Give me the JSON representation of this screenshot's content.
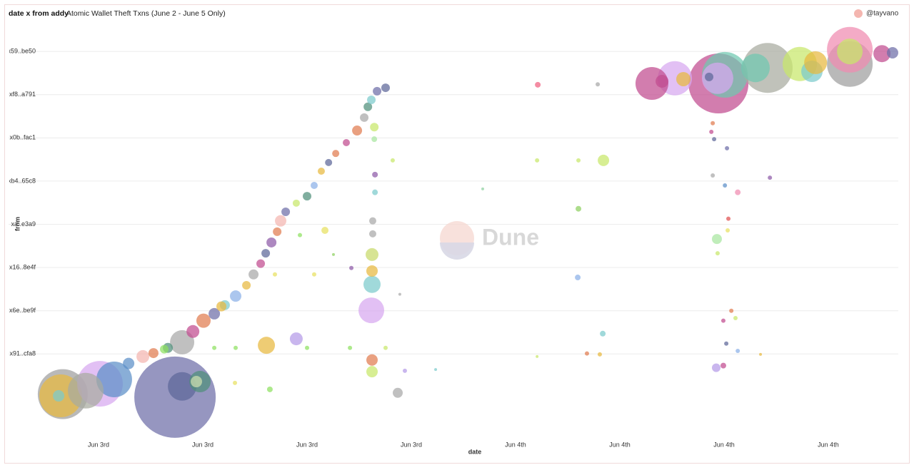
{
  "chart_data": {
    "type": "bubble",
    "title": "date x from addy",
    "subtitle": "Atomic Wallet Theft Txns (June 2 - June 5 Only)",
    "x_label": "date",
    "y_label": "from",
    "watermark": "Dune",
    "legend_position": "top-right",
    "grid": true,
    "xlim": [
      -5.18,
      46.03
    ],
    "xticks": [
      {
        "value": 0,
        "label": "Jun 3rd"
      },
      {
        "value": 6,
        "label": "Jun 3rd"
      },
      {
        "value": 12,
        "label": "Jun 3rd"
      },
      {
        "value": 18,
        "label": "Jun 3rd"
      },
      {
        "value": 24,
        "label": "Jun 4th"
      },
      {
        "value": 30,
        "label": "Jun 4th"
      },
      {
        "value": 36,
        "label": "Jun 4th"
      },
      {
        "value": 42,
        "label": "Jun 4th"
      }
    ],
    "ylim": [
      -0.91,
      8.3
    ],
    "yticks": [
      {
        "value": 8,
        "label": "x59..be50"
      },
      {
        "value": 7,
        "label": "xf8..a791"
      },
      {
        "value": 6,
        "label": "x0b..fac1"
      },
      {
        "value": 5,
        "label": "xb4..65c8"
      },
      {
        "value": 4,
        "label": "xa..e3a9"
      },
      {
        "value": 3,
        "label": "x16..8e4f"
      },
      {
        "value": 2,
        "label": "x6e..be9f"
      },
      {
        "value": 1,
        "label": "x91..cfa8"
      }
    ],
    "series": [
      {
        "name": "@tayvano",
        "color": "#f4b6b0",
        "x": [
          -2.06,
          -2.18,
          -2.3,
          0.08,
          0.9,
          -0.74,
          4.4,
          4.81,
          5.84,
          5.63,
          4.81,
          9.66,
          11.38,
          15.7,
          15.74,
          15.74,
          15.74,
          15.74,
          15.74,
          35.68,
          36.05,
          35.63,
          38.51,
          43.24,
          43.24,
          43.24,
          33.17,
          31.85,
          40.36,
          41.06,
          41.27,
          45.09,
          45.7,
          33.66,
          32.43,
          37.81,
          35.14,
          29.06,
          35.59,
          17.22,
          1.73,
          2.55,
          3.16,
          3.99,
          5.43,
          6.04,
          6.66,
          7.27,
          7.89,
          8.51,
          8.92,
          9.33,
          9.62,
          9.95,
          10.28,
          10.48,
          10.77,
          11.38,
          12.0,
          12.41,
          12.82,
          13.24,
          13.65,
          14.26,
          14.88,
          15.29,
          15.5,
          15.7,
          16.03,
          16.52,
          7.07,
          3.78,
          6.66,
          7.89,
          12.0,
          14.47,
          16.52,
          12.41,
          10.15,
          11.59,
          13.03,
          16.93,
          25.24,
          27.62,
          15.91,
          15.91,
          15.78,
          15.78,
          25.28,
          28.73,
          35.35,
          35.43,
          36.17,
          35.35,
          36.79,
          36.05,
          38.64,
          36.25,
          36.21,
          35.63,
          27.62,
          27.58,
          29.02,
          28.85,
          35.55,
          36.13,
          36.79,
          35.96,
          36.66,
          36.42,
          19.4,
          22.11,
          17.63,
          9.86,
          7.85,
          14.55,
          13.52,
          17.34,
          25.24,
          35.96,
          38.1,
          28.11,
          15.87,
          15.87,
          35.27
        ],
        "y": [
          0.07,
          0.03,
          0.03,
          0.31,
          0.41,
          0.15,
          0,
          0.25,
          0.36,
          0.36,
          1.27,
          1.2,
          1.35,
          2.01,
          2.61,
          2.92,
          3.3,
          0.86,
          0.59,
          7.26,
          7.46,
          7.38,
          7.62,
          7.71,
          8.04,
          8.0,
          7.38,
          7.26,
          7.71,
          7.54,
          7.74,
          7.95,
          7.97,
          7.36,
          7.31,
          7.62,
          7.41,
          5.48,
          3.66,
          0.1,
          0.78,
          0.94,
          1.02,
          1.14,
          1.52,
          1.77,
          1.93,
          2.13,
          2.34,
          2.59,
          2.84,
          3.09,
          3.33,
          3.58,
          3.83,
          4.08,
          4.29,
          4.49,
          4.65,
          4.9,
          5.23,
          5.43,
          5.64,
          5.89,
          6.17,
          6.47,
          6.72,
          6.88,
          7.08,
          7.16,
          2.1,
          1.11,
          1.14,
          1.14,
          1.14,
          1.14,
          1.14,
          2.84,
          2.84,
          3.75,
          3.86,
          5.48,
          5.48,
          5.48,
          5.15,
          4.74,
          4.08,
          3.78,
          7.23,
          7.24,
          6.34,
          5.97,
          5.76,
          5.13,
          4.74,
          4.9,
          5.08,
          4.13,
          3.86,
          3.33,
          4.36,
          2.77,
          1.47,
          0.99,
          0.68,
          1.24,
          1.07,
          1.77,
          1.83,
          2.0,
          0.64,
          4.82,
          0.61,
          0.18,
          0.33,
          2.99,
          3.3,
          2.38,
          0.94,
          0.73,
          0.99,
          1.01,
          5.97,
          6.25,
          6.14
        ],
        "sizes": [
          35,
          30,
          8,
          32,
          25,
          25,
          57,
          20,
          15,
          8,
          17,
          12,
          9,
          18,
          12,
          8,
          9,
          8,
          8,
          42,
          32,
          22,
          35,
          32,
          32,
          18,
          24,
          23,
          24,
          15,
          16,
          12,
          8,
          10,
          9,
          20,
          6,
          8,
          7,
          7,
          8,
          9,
          7,
          7,
          9,
          10,
          8,
          7,
          8,
          6,
          7,
          6,
          6,
          7,
          6,
          8,
          6,
          5,
          6,
          5,
          5,
          5,
          5,
          5,
          7,
          6,
          6,
          6,
          6,
          6,
          7,
          6,
          3,
          3,
          3,
          3,
          3,
          3,
          3,
          3,
          5,
          3,
          3,
          3,
          4,
          4,
          5,
          5,
          4,
          3,
          3,
          3,
          3,
          3,
          4,
          3,
          3,
          3,
          3,
          3,
          4,
          4,
          4,
          3,
          6,
          3,
          3,
          3,
          3,
          3,
          2,
          2,
          3,
          4,
          3,
          3,
          2,
          2,
          2,
          4,
          2,
          3,
          4,
          6,
          3
        ],
        "point_colors": [
          "#9e9e9e",
          "#e7b83f",
          "#7ccbcc",
          "#d7a8f0",
          "#5b8fc7",
          "#a8aaa0",
          "#6e6ea8",
          "#5d6798",
          "#4f8f7a",
          "#cfe0b0",
          "#a8a8a8",
          "#e7b83f",
          "#b49ae8",
          "#d7a8f0",
          "#7ccbcc",
          "#e7b83f",
          "#c8d96a",
          "#e07b4f",
          "#c8e86a",
          "#c04b8f",
          "#6fc7b0",
          "#d7a8f0",
          "#a8aaa0",
          "#9e9e9e",
          "#f08ab0",
          "#c8e86a",
          "#d7a8f0",
          "#c04b8f",
          "#c8e86a",
          "#7ccbcc",
          "#e7b83f",
          "#c04b8f",
          "#6e6ea8",
          "#e7b83f",
          "#c04b8f",
          "#6fc7b0",
          "#5d6798",
          "#c8e86a",
          "#a8e6a0",
          "#a8a8a8",
          "#5b8fc7",
          "#f4b6b0",
          "#e07b4f",
          "#4f8f7a",
          "#c04b8f",
          "#e07b4f",
          "#6e6ea8",
          "#7ccbcc",
          "#8ab0e8",
          "#e7b83f",
          "#a8a8a8",
          "#c04b8f",
          "#5d6798",
          "#8e5aa8",
          "#e07b4f",
          "#f4b6b0",
          "#6e6ea8",
          "#c8e86a",
          "#4f8f7a",
          "#8ab0e8",
          "#e7b83f",
          "#5d6798",
          "#e07b4f",
          "#c04b8f",
          "#e07b4f",
          "#a8a8a8",
          "#4f8f7a",
          "#7ccbcc",
          "#6e6ea8",
          "#5d6798",
          "#e7b83f",
          "#8ee060",
          "#8ee060",
          "#8ee060",
          "#8ee060",
          "#8ee060",
          "#c8e86a",
          "#e7e060",
          "#e7e060",
          "#8ee060",
          "#e7e060",
          "#c8e86a",
          "#c8e86a",
          "#c8e86a",
          "#8e5aa8",
          "#7ccbcc",
          "#a8a8a8",
          "#a8a8a8",
          "#f06080",
          "#a8a8a8",
          "#e07b4f",
          "#5d6798",
          "#6e6ea8",
          "#a8a8a8",
          "#f08ab0",
          "#5b8fc7",
          "#8e5aa8",
          "#e05050",
          "#e7e060",
          "#c8e86a",
          "#8ed060",
          "#8ab0e8",
          "#7ccbcc",
          "#e7b83f",
          "#b49ae8",
          "#5d6798",
          "#8ab0e8",
          "#c04b8f",
          "#c8e86a",
          "#e07b4f",
          "#7ccbcc",
          "#8ed0a0",
          "#b49ae8",
          "#8ee060",
          "#e7e060",
          "#8e5aa8",
          "#8ed060",
          "#a8a8a8",
          "#c8e86a",
          "#c04b8f",
          "#e7b83f",
          "#e07b4f",
          "#a8e6a0",
          "#c8e86a",
          "#c04b8f"
        ]
      }
    ]
  }
}
